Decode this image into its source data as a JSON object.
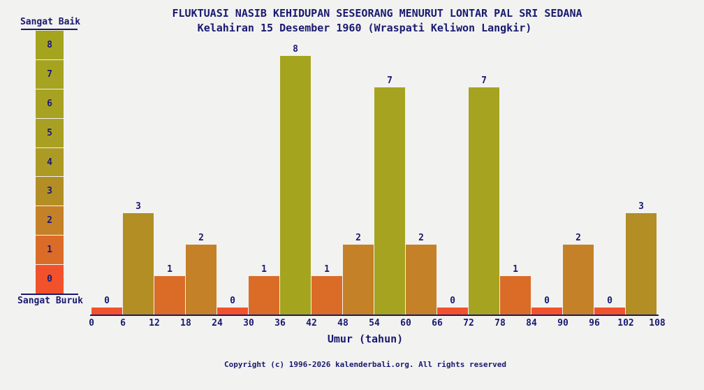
{
  "page": {
    "background_color": "#f2f2f1",
    "text_color": "#191970"
  },
  "footer": {
    "copyright": "Copyright (c) 1996-2026 kalenderbali.org. All rights reserved"
  },
  "chart_data": {
    "type": "bar",
    "title": "FLUKTUASI NASIB KEHIDUPAN SESEORANG MENURUT LONTAR PAL SRI SEDANA",
    "subtitle": "Kelahiran 15 Desember 1960 (Wraspati Keliwon Langkir)",
    "xlabel": "Umur (tahun)",
    "ylabel": "",
    "ylim": [
      0,
      8
    ],
    "x_ticks": [
      0,
      6,
      12,
      18,
      24,
      30,
      36,
      42,
      48,
      54,
      60,
      66,
      72,
      78,
      84,
      90,
      96,
      102,
      108
    ],
    "categories": [
      "0-6",
      "6-12",
      "12-18",
      "18-24",
      "24-30",
      "30-36",
      "36-42",
      "42-48",
      "48-54",
      "54-60",
      "60-66",
      "66-72",
      "72-78",
      "78-84",
      "84-90",
      "90-96",
      "96-102",
      "102-108"
    ],
    "values": [
      0,
      3,
      1,
      2,
      0,
      1,
      8,
      1,
      2,
      7,
      2,
      0,
      7,
      1,
      0,
      2,
      0,
      3
    ],
    "bar_labels_shown": true,
    "grid": false,
    "value_colors": {
      "0": "#f1522b",
      "1": "#da6c28",
      "2": "#c48127",
      "3": "#b28e25",
      "4": "#ac9a24",
      "5": "#a9a023",
      "6": "#a8a222",
      "7": "#a6a321",
      "8": "#a5a41f"
    },
    "legend": {
      "top": "Sangat Baik",
      "bottom": "Sangat Buruk",
      "levels": [
        8,
        7,
        6,
        5,
        4,
        3,
        2,
        1,
        0
      ],
      "position": "left"
    }
  }
}
